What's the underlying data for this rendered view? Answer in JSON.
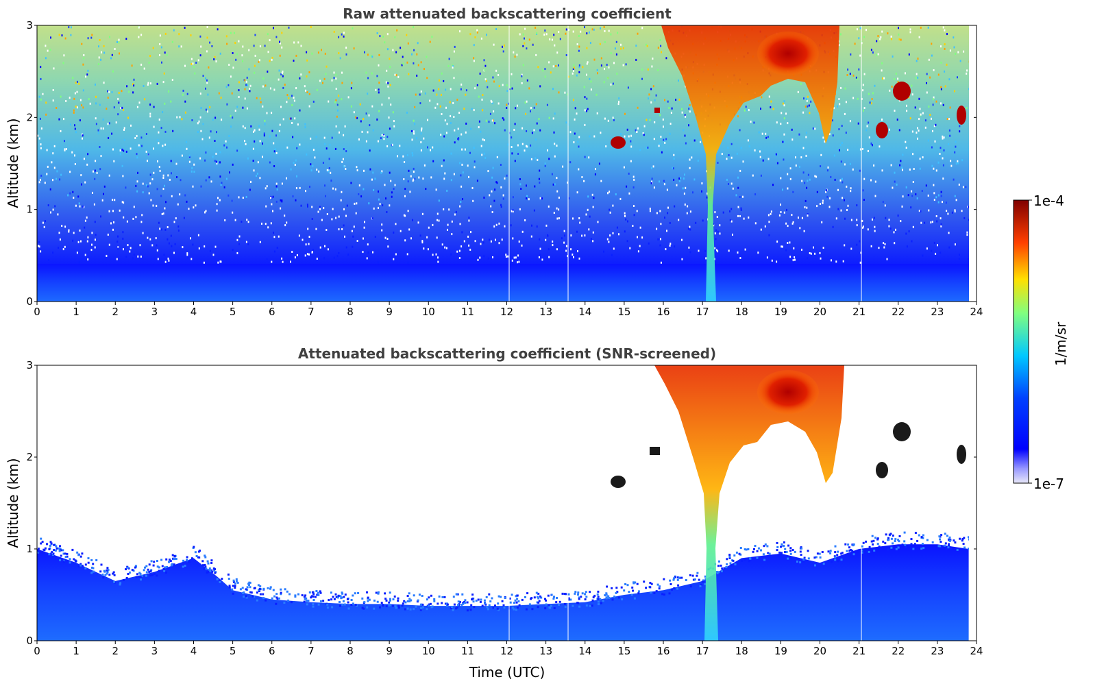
{
  "colors": {
    "background": "#ffffff",
    "title": "#404040",
    "colormap": [
      "#e8e8f8",
      "#0000ff",
      "#00c8ff",
      "#80ff80",
      "#ffe000",
      "#ff4000",
      "#800000"
    ]
  },
  "chart_data": [
    {
      "type": "heatmap",
      "title": "Raw attenuated backscattering coefficient",
      "xlabel": "",
      "ylabel": "Altitude (km)",
      "xlim": [
        0,
        24
      ],
      "ylim": [
        0,
        3
      ],
      "xticks": [
        "0",
        "1",
        "2",
        "3",
        "4",
        "5",
        "6",
        "7",
        "8",
        "9",
        "10",
        "11",
        "12",
        "13",
        "14",
        "15",
        "16",
        "17",
        "18",
        "19",
        "20",
        "21",
        "22",
        "23",
        "24"
      ],
      "yticks": [
        "0",
        "1",
        "2",
        "3"
      ],
      "features": [
        {
          "name": "boundary layer",
          "time_range": [
            0,
            23.8
          ],
          "altitude_top_km": 0.4
        },
        {
          "name": "main cloud column",
          "time_range": [
            16.5,
            20.5
          ],
          "altitude_km": [
            0.0,
            3.0
          ]
        },
        {
          "name": "cloud patch",
          "time_km": [
            14.8,
            1.7
          ]
        },
        {
          "name": "cloud patch",
          "time_km": [
            21.5,
            1.85
          ]
        },
        {
          "name": "cloud patch",
          "time_km": [
            22.2,
            2.25
          ]
        },
        {
          "name": "cloud patch",
          "time_km": [
            23.6,
            2.0
          ]
        }
      ],
      "screened": false
    },
    {
      "type": "heatmap",
      "title": "Attenuated backscattering coefficient (SNR-screened)",
      "xlabel": "Time (UTC)",
      "ylabel": "Altitude (km)",
      "xlim": [
        0,
        24
      ],
      "ylim": [
        0,
        3
      ],
      "xticks": [
        "0",
        "1",
        "2",
        "3",
        "4",
        "5",
        "6",
        "7",
        "8",
        "9",
        "10",
        "11",
        "12",
        "13",
        "14",
        "15",
        "16",
        "17",
        "18",
        "19",
        "20",
        "21",
        "22",
        "23",
        "24"
      ],
      "yticks": [
        "0",
        "1",
        "2",
        "3"
      ],
      "boundary_layer_top_km": [
        [
          0,
          1.0
        ],
        [
          1,
          0.85
        ],
        [
          2,
          0.65
        ],
        [
          3,
          0.75
        ],
        [
          4,
          0.9
        ],
        [
          4.6,
          0.7
        ],
        [
          5,
          0.55
        ],
        [
          6,
          0.45
        ],
        [
          7,
          0.42
        ],
        [
          8,
          0.4
        ],
        [
          9,
          0.4
        ],
        [
          10,
          0.38
        ],
        [
          11,
          0.38
        ],
        [
          12,
          0.38
        ],
        [
          13,
          0.4
        ],
        [
          14,
          0.42
        ],
        [
          15,
          0.5
        ],
        [
          16,
          0.55
        ],
        [
          17,
          0.65
        ],
        [
          18,
          0.9
        ],
        [
          19,
          0.95
        ],
        [
          20,
          0.85
        ],
        [
          21,
          1.0
        ],
        [
          22,
          1.05
        ],
        [
          23,
          1.05
        ],
        [
          23.8,
          1.0
        ]
      ],
      "screened": true
    }
  ],
  "colorbar": {
    "label": "1/m/sr",
    "max_label": "1e-4",
    "min_label": "1e-7",
    "scale": "log",
    "range": [
      1e-07,
      0.0001
    ]
  }
}
